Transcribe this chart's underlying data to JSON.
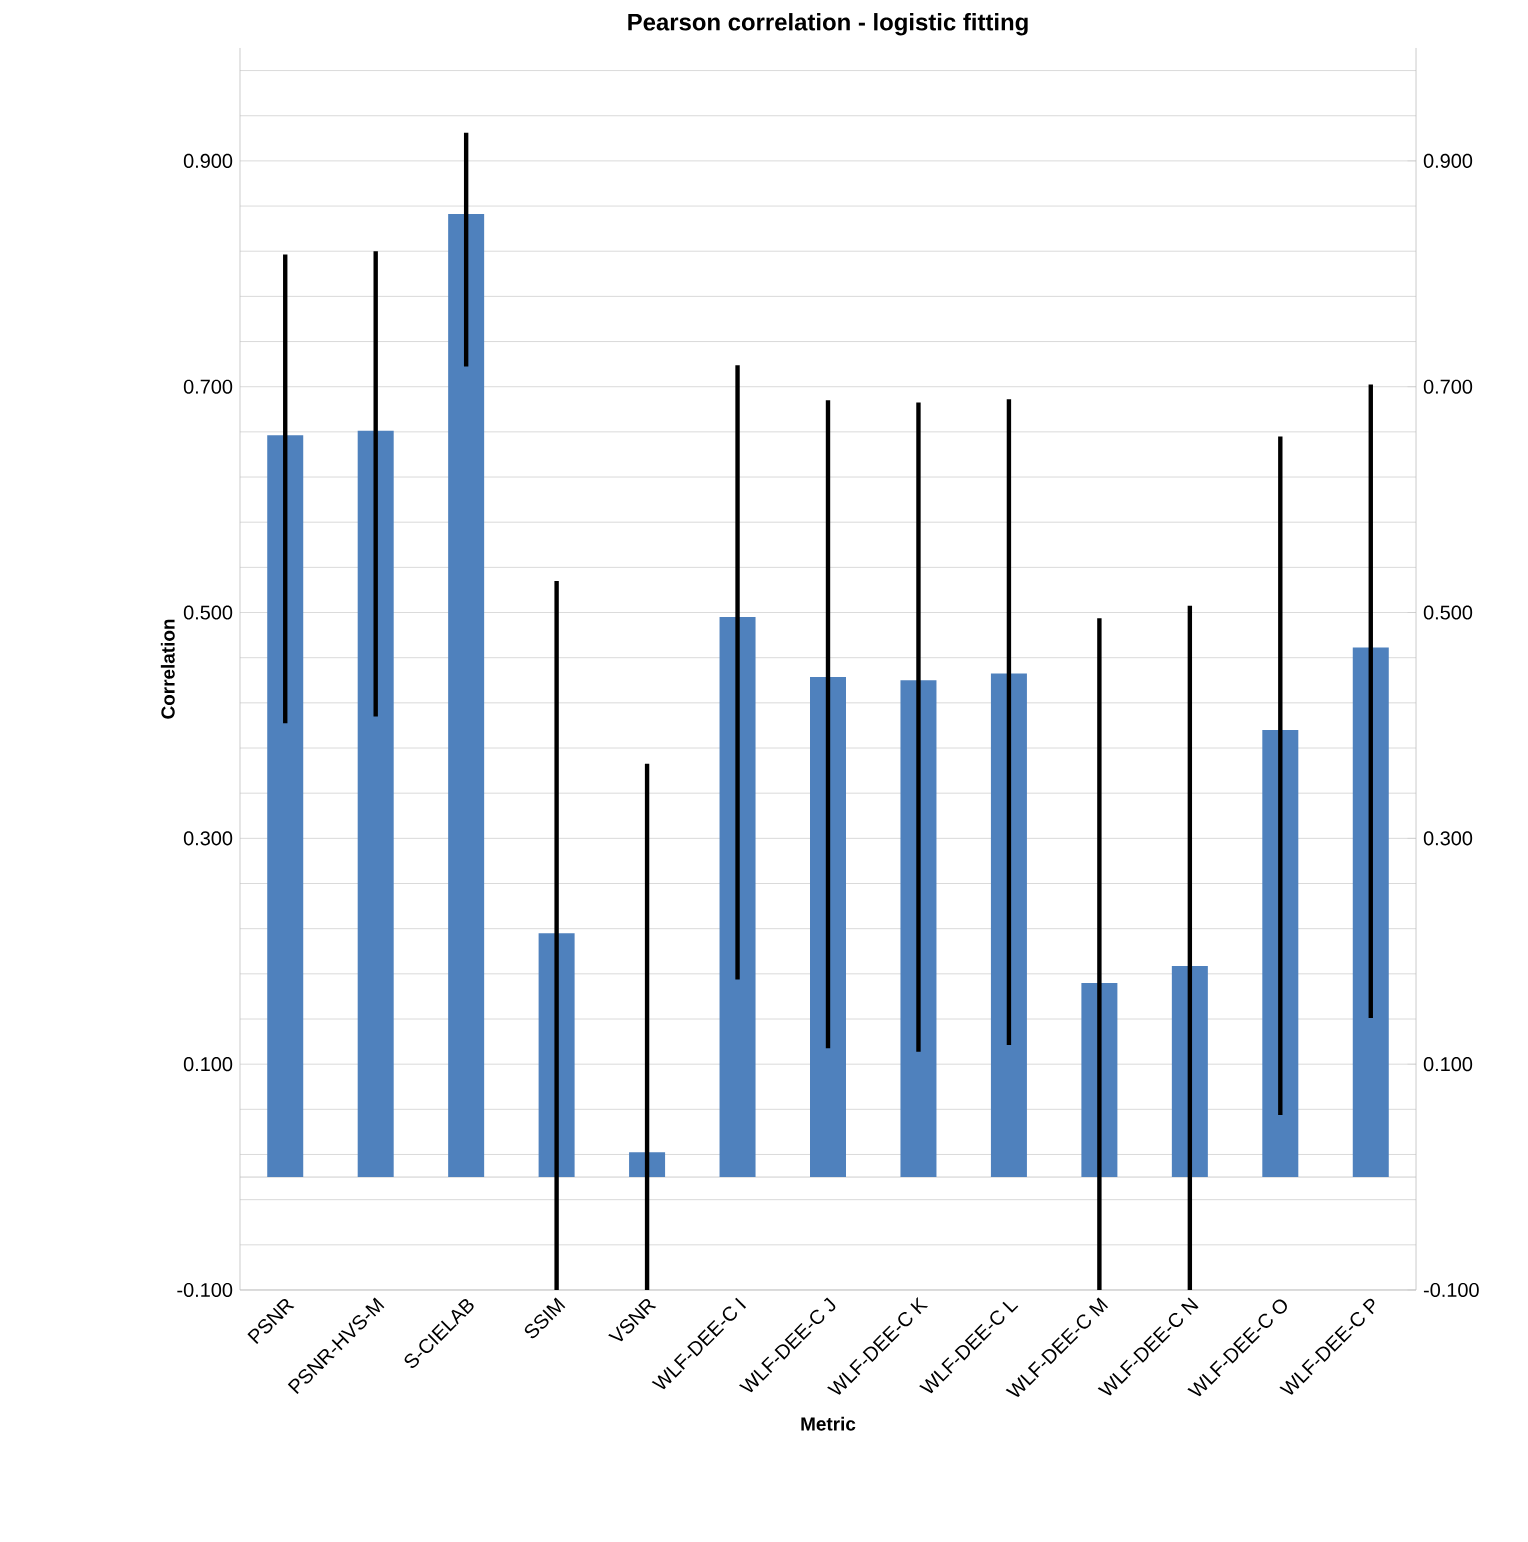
{
  "chart_data": {
    "type": "bar",
    "title": "Pearson correlation - logistic fitting",
    "xlabel": "Metric",
    "ylabel": "Correlation",
    "categories": [
      "PSNR",
      "PSNR-HVS-M",
      "S-CIELAB",
      "SSIM",
      "VSNR",
      "WLF-DEE-C I",
      "WLF-DEE-C J",
      "WLF-DEE-C K",
      "WLF-DEE-C L",
      "WLF-DEE-C M",
      "WLF-DEE-C N",
      "WLF-DEE-C O",
      "WLF-DEE-C P"
    ],
    "values": [
      0.657,
      0.661,
      0.853,
      0.216,
      0.022,
      0.496,
      0.443,
      0.44,
      0.446,
      0.172,
      0.187,
      0.396,
      0.469
    ],
    "errors": [
      [
        0.402,
        0.817
      ],
      [
        0.408,
        0.82
      ],
      [
        0.718,
        0.925
      ],
      [
        -0.1,
        0.528
      ],
      [
        -0.1,
        0.366
      ],
      [
        0.175,
        0.719
      ],
      [
        0.114,
        0.688
      ],
      [
        0.111,
        0.686
      ],
      [
        0.117,
        0.689
      ],
      [
        -0.1,
        0.495
      ],
      [
        -0.1,
        0.506
      ],
      [
        0.055,
        0.656
      ],
      [
        0.141,
        0.702
      ]
    ],
    "color": "#4f81bd",
    "ylim": [
      -0.1,
      1.0
    ],
    "yticks": [
      {
        "value": -0.1,
        "label": "-0.100"
      },
      {
        "value": -0.06,
        "label": null
      },
      {
        "value": -0.02,
        "label": null
      },
      {
        "value": 0.02,
        "label": null
      },
      {
        "value": 0.06,
        "label": null
      },
      {
        "value": 0.1,
        "label": "0.100"
      },
      {
        "value": 0.14,
        "label": null
      },
      {
        "value": 0.18,
        "label": null
      },
      {
        "value": 0.22,
        "label": null
      },
      {
        "value": 0.26,
        "label": null
      },
      {
        "value": 0.3,
        "label": "0.300"
      },
      {
        "value": 0.34,
        "label": null
      },
      {
        "value": 0.38,
        "label": null
      },
      {
        "value": 0.42,
        "label": null
      },
      {
        "value": 0.46,
        "label": null
      },
      {
        "value": 0.5,
        "label": "0.500"
      },
      {
        "value": 0.54,
        "label": null
      },
      {
        "value": 0.58,
        "label": null
      },
      {
        "value": 0.62,
        "label": null
      },
      {
        "value": 0.66,
        "label": null
      },
      {
        "value": 0.7,
        "label": "0.700"
      },
      {
        "value": 0.74,
        "label": null
      },
      {
        "value": 0.78,
        "label": null
      },
      {
        "value": 0.82,
        "label": null
      },
      {
        "value": 0.86,
        "label": null
      },
      {
        "value": 0.9,
        "label": "0.900"
      },
      {
        "value": 0.94,
        "label": null
      },
      {
        "value": 0.98,
        "label": null
      }
    ],
    "y2lim": [
      -0.1,
      1.0
    ],
    "y2ticks": [
      {
        "value": -0.1,
        "label": "-0.100"
      },
      {
        "value": 0.1,
        "label": "0.100"
      },
      {
        "value": 0.3,
        "label": "0.300"
      },
      {
        "value": 0.5,
        "label": "0.500"
      },
      {
        "value": 0.7,
        "label": "0.700"
      },
      {
        "value": 0.9,
        "label": "0.900"
      }
    ],
    "grid": "y"
  }
}
